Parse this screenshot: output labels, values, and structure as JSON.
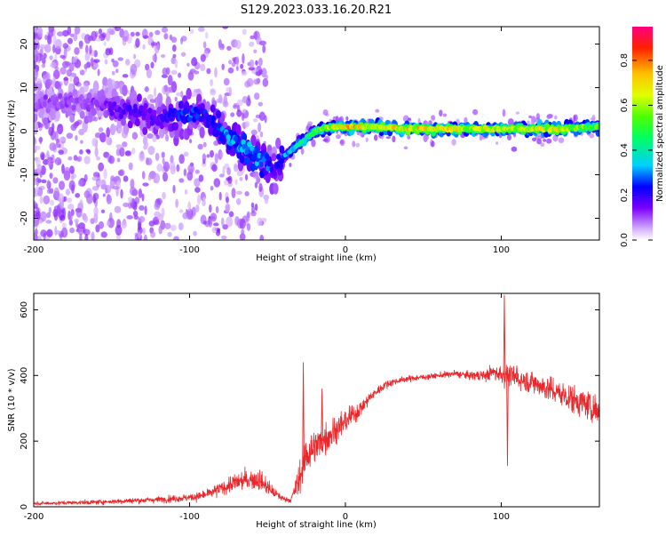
{
  "title": "S129.2023.033.16.20.R21",
  "chart_data": [
    {
      "type": "heatmap",
      "xlabel": "Height of straight line (km)",
      "ylabel": "Frequency (Hz)",
      "xlim": [
        -200,
        163
      ],
      "ylim": [
        -25,
        24
      ],
      "x_ticks": [
        -200,
        -100,
        0,
        100
      ],
      "y_ticks": [
        -20,
        -10,
        0,
        10,
        20
      ],
      "colorbar": {
        "label": "Normalized spectral amplitude",
        "range": [
          0,
          0.95
        ],
        "ticks": [
          0.0,
          0.2,
          0.4,
          0.6,
          0.8
        ]
      },
      "ridge": {
        "x": [
          -200,
          -180,
          -160,
          -140,
          -120,
          -100,
          -90,
          -80,
          -70,
          -60,
          -50,
          -45,
          -40,
          -30,
          -20,
          -10,
          0,
          20,
          40,
          60,
          80,
          100,
          120,
          140,
          160
        ],
        "frequency": [
          6,
          7,
          6,
          5,
          3,
          4,
          4,
          0,
          -3,
          -5,
          -7,
          -9,
          -6,
          -3,
          0,
          1,
          1,
          1,
          0.5,
          0.5,
          0.5,
          0.5,
          0.5,
          0.5,
          1
        ],
        "amplitude": [
          0.12,
          0.12,
          0.13,
          0.2,
          0.18,
          0.3,
          0.25,
          0.3,
          0.35,
          0.35,
          0.3,
          0.2,
          0.3,
          0.45,
          0.55,
          0.65,
          0.8,
          0.7,
          0.75,
          0.75,
          0.7,
          0.7,
          0.7,
          0.72,
          0.6
        ]
      }
    },
    {
      "type": "line",
      "xlabel": "Height of straight line (km)",
      "ylabel": "SNR (10 * v/v)",
      "xlim": [
        -200,
        163
      ],
      "ylim": [
        0,
        650
      ],
      "x_ticks": [
        -200,
        -100,
        0,
        100
      ],
      "y_ticks": [
        0,
        200,
        400,
        600
      ],
      "series": [
        {
          "color": "#e8282c",
          "x": [
            -200,
            -180,
            -160,
            -140,
            -120,
            -100,
            -90,
            -80,
            -70,
            -60,
            -55,
            -50,
            -45,
            -40,
            -35,
            -30,
            -25,
            -20,
            -15,
            -10,
            -5,
            0,
            5,
            10,
            15,
            20,
            25,
            30,
            40,
            50,
            60,
            70,
            80,
            90,
            95,
            100,
            105,
            110,
            120,
            130,
            140,
            150,
            160,
            163
          ],
          "y": [
            10,
            12,
            14,
            18,
            22,
            28,
            35,
            55,
            75,
            85,
            80,
            60,
            40,
            25,
            20,
            80,
            160,
            180,
            200,
            220,
            240,
            260,
            280,
            300,
            330,
            350,
            370,
            380,
            390,
            395,
            400,
            405,
            400,
            400,
            410,
            405,
            400,
            390,
            380,
            360,
            340,
            320,
            300,
            290
          ],
          "spread": [
            8,
            10,
            12,
            14,
            16,
            20,
            25,
            35,
            45,
            55,
            55,
            40,
            25,
            15,
            12,
            80,
            110,
            90,
            85,
            80,
            70,
            60,
            50,
            40,
            30,
            25,
            20,
            18,
            15,
            15,
            15,
            18,
            20,
            30,
            40,
            60,
            45,
            50,
            60,
            65,
            70,
            75,
            80,
            85
          ]
        }
      ],
      "spikes": [
        {
          "x": -15,
          "y": 360
        },
        {
          "x": -27,
          "y": 440
        },
        {
          "x": 102,
          "y": 645
        },
        {
          "x": 104,
          "y": 125
        },
        {
          "x": 110,
          "y": 430
        }
      ]
    }
  ]
}
